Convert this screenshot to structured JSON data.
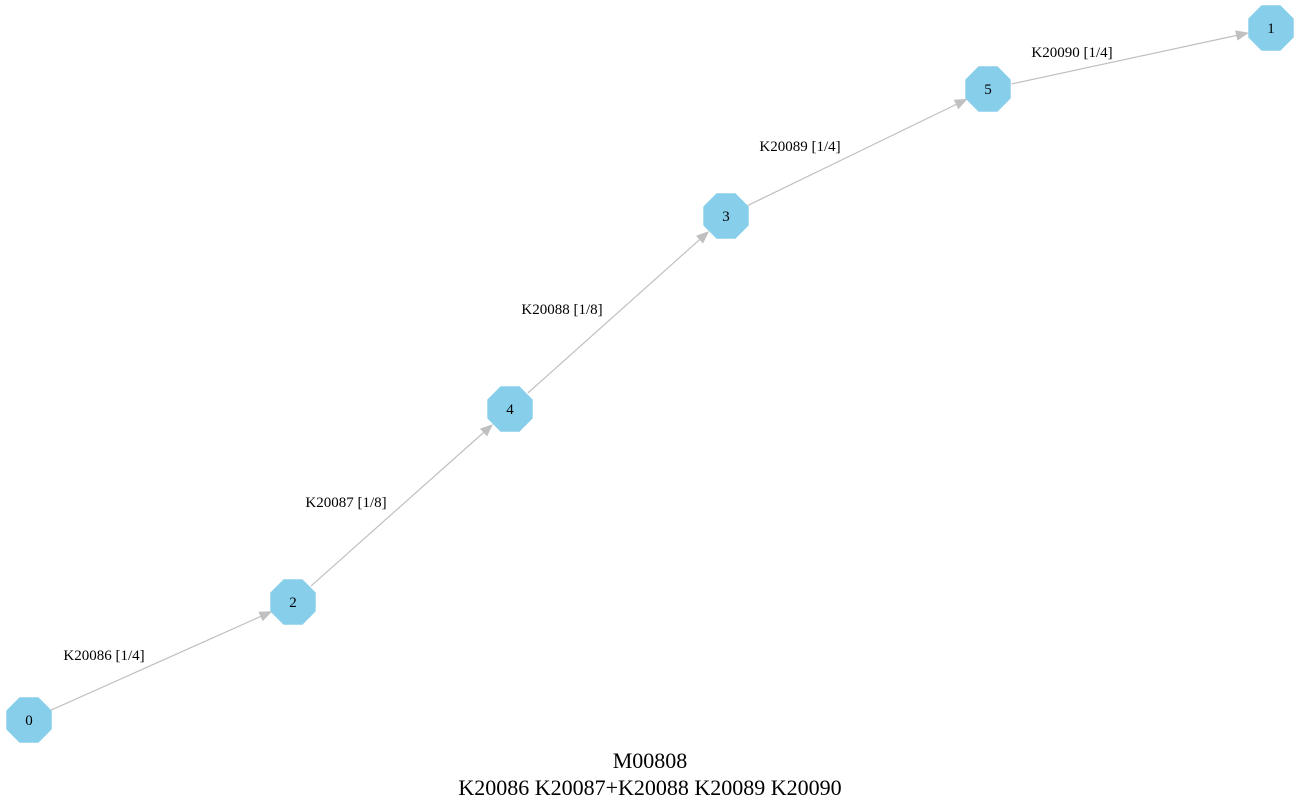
{
  "graph": {
    "title": "M00808",
    "subtitle": "K20086 K20087+K20088 K20089 K20090",
    "node_color": "#87ceeb",
    "edge_color": "#c0c0c0",
    "nodes": [
      {
        "id": "0",
        "label": "0"
      },
      {
        "id": "2",
        "label": "2"
      },
      {
        "id": "4",
        "label": "4"
      },
      {
        "id": "3",
        "label": "3"
      },
      {
        "id": "5",
        "label": "5"
      },
      {
        "id": "1",
        "label": "1"
      }
    ],
    "edges": [
      {
        "from": "0",
        "to": "2",
        "label": "K20086 [1/4]"
      },
      {
        "from": "2",
        "to": "4",
        "label": "K20087 [1/8]"
      },
      {
        "from": "4",
        "to": "3",
        "label": "K20088 [1/8]"
      },
      {
        "from": "3",
        "to": "5",
        "label": "K20089 [1/4]"
      },
      {
        "from": "5",
        "to": "1",
        "label": "K20090 [1/4]"
      }
    ]
  }
}
